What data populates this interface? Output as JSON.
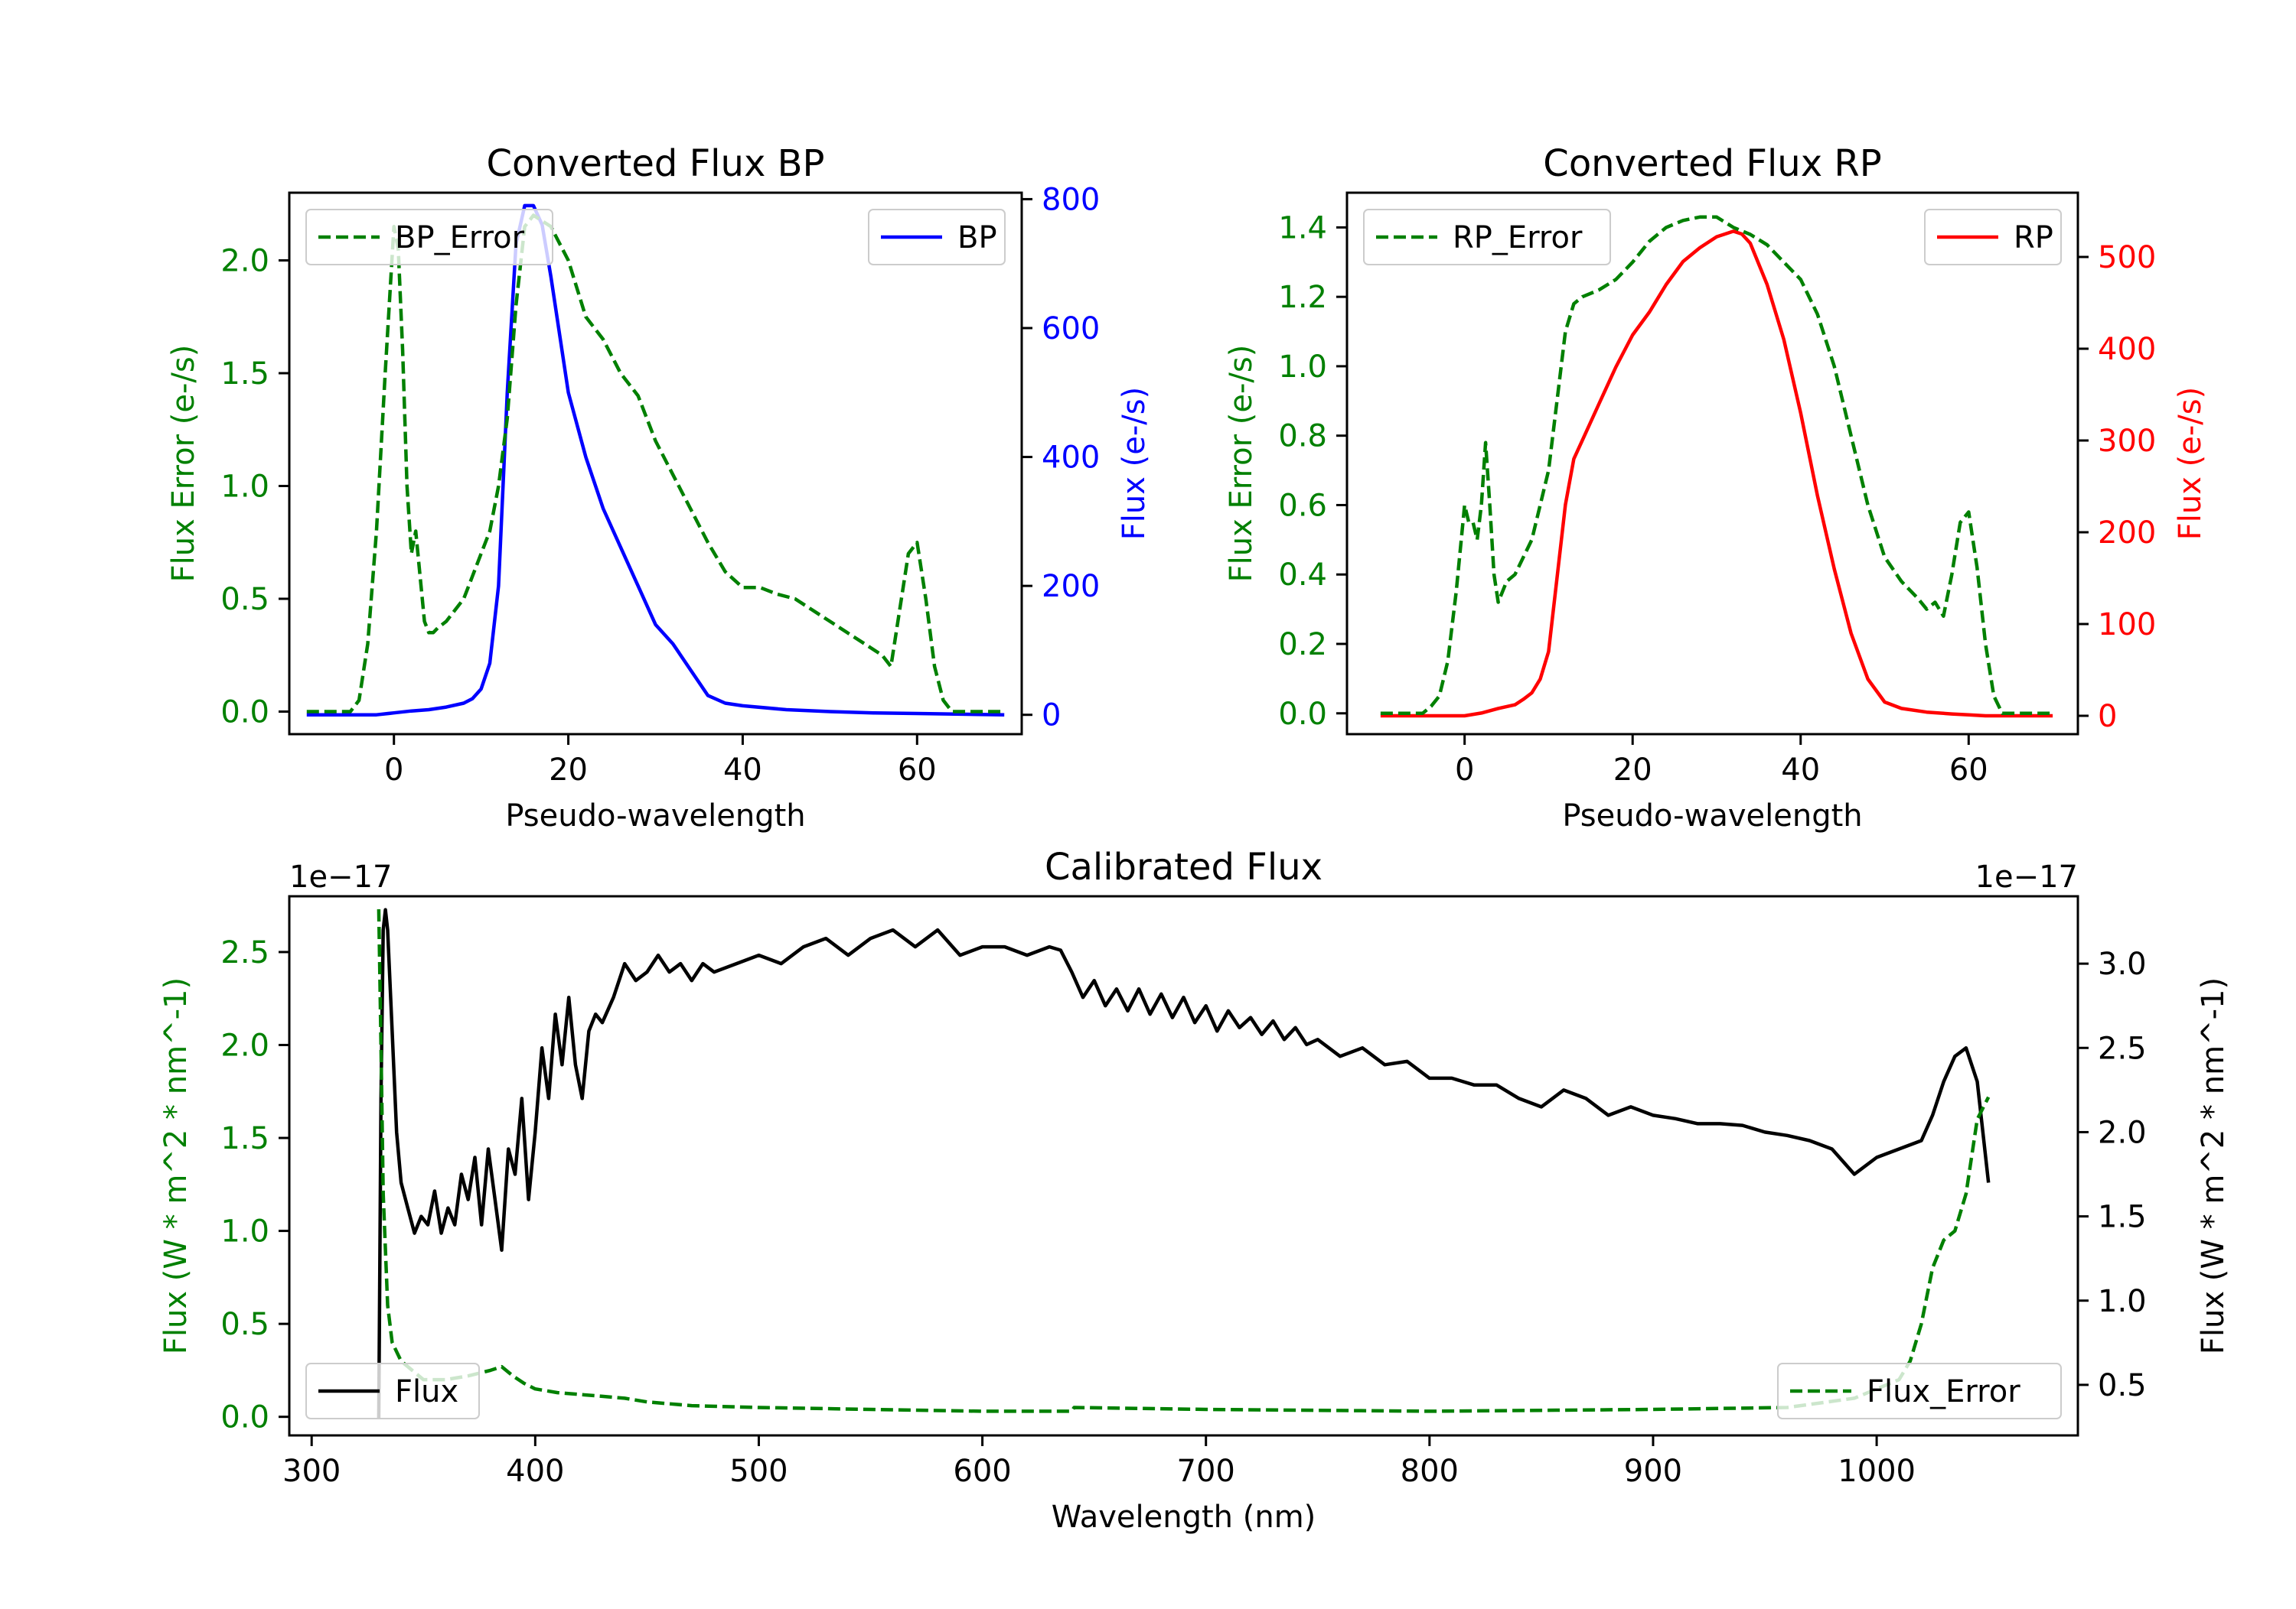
{
  "chart_data": [
    {
      "id": "bp",
      "type": "line",
      "title": "Converted Flux BP",
      "xlabel": "Pseudo-wavelength",
      "ylabel_left": "Flux Error (e-/s)",
      "ylabel_right": "Flux (e-/s)",
      "xlim": [
        -12,
        72
      ],
      "ylim_left": [
        -0.1,
        2.3
      ],
      "ylim_right": [
        -30,
        810
      ],
      "x_ticks": [
        0,
        20,
        40,
        60
      ],
      "y_ticks_left": [
        "0.0",
        "0.5",
        "1.0",
        "1.5",
        "2.0"
      ],
      "y_ticks_right": [
        "0",
        "200",
        "400",
        "600",
        "800"
      ],
      "left_color": "#008000",
      "right_color": "#0000ff",
      "left_legend": "BP_Error",
      "right_legend": "BP",
      "left_legend_position": "upper left",
      "right_legend_position": "upper right",
      "left_series": {
        "name": "BP_Error",
        "axis": "left",
        "style": "dashed",
        "x": [
          -10,
          -5,
          -4,
          -3,
          -2,
          -1,
          0,
          0.5,
          1,
          1.5,
          2,
          2.5,
          3,
          3.5,
          4,
          4.5,
          5,
          6,
          7,
          8,
          9,
          10,
          11,
          12,
          13,
          14,
          15,
          16,
          18,
          20,
          22,
          24,
          26,
          28,
          30,
          32,
          34,
          36,
          38,
          40,
          42,
          44,
          46,
          48,
          50,
          52,
          54,
          56,
          57,
          58,
          59,
          60,
          61,
          62,
          63,
          64,
          66,
          70
        ],
        "y": [
          0,
          0,
          0.05,
          0.3,
          0.8,
          1.5,
          2.15,
          2.05,
          1.6,
          1.0,
          0.7,
          0.8,
          0.6,
          0.4,
          0.35,
          0.35,
          0.37,
          0.4,
          0.45,
          0.5,
          0.6,
          0.7,
          0.8,
          1.0,
          1.3,
          1.8,
          2.15,
          2.2,
          2.15,
          2.0,
          1.75,
          1.65,
          1.5,
          1.4,
          1.2,
          1.05,
          0.9,
          0.75,
          0.62,
          0.55,
          0.55,
          0.52,
          0.5,
          0.45,
          0.4,
          0.35,
          0.3,
          0.25,
          0.2,
          0.45,
          0.7,
          0.75,
          0.5,
          0.2,
          0.05,
          0,
          0,
          0
        ]
      },
      "right_series": {
        "name": "BP",
        "axis": "right",
        "style": "solid",
        "x": [
          -10,
          -2,
          0,
          2,
          4,
          6,
          8,
          9,
          10,
          11,
          12,
          13,
          14,
          15,
          16,
          17,
          18,
          20,
          22,
          24,
          26,
          28,
          30,
          32,
          34,
          36,
          38,
          40,
          45,
          50,
          55,
          60,
          65,
          70
        ],
        "y": [
          0,
          0,
          3,
          6,
          8,
          12,
          18,
          25,
          40,
          80,
          200,
          500,
          730,
          790,
          790,
          760,
          680,
          500,
          400,
          320,
          260,
          200,
          140,
          110,
          70,
          30,
          18,
          14,
          8,
          5,
          3,
          2,
          1,
          0
        ]
      }
    },
    {
      "id": "rp",
      "type": "line",
      "title": "Converted Flux RP",
      "xlabel": "Pseudo-wavelength",
      "ylabel_left": "Flux Error (e-/s)",
      "ylabel_right": "Flux (e-/s)",
      "xlim": [
        -14,
        73
      ],
      "ylim_left": [
        -0.06,
        1.5
      ],
      "ylim_right": [
        -20,
        570
      ],
      "x_ticks": [
        0,
        20,
        40,
        60
      ],
      "y_ticks_left": [
        "0.0",
        "0.2",
        "0.4",
        "0.6",
        "0.8",
        "1.0",
        "1.2",
        "1.4"
      ],
      "y_ticks_right": [
        "0",
        "100",
        "200",
        "300",
        "400",
        "500"
      ],
      "left_color": "#008000",
      "right_color": "#ff0000",
      "left_legend": "RP_Error",
      "right_legend": "RP",
      "left_legend_position": "upper left",
      "right_legend_position": "upper right",
      "left_series": {
        "name": "RP_Error",
        "axis": "left",
        "style": "dashed",
        "x": [
          -10,
          -5,
          -4,
          -3,
          -2,
          -1,
          0,
          0.5,
          1,
          1.5,
          2,
          2.5,
          3,
          3.5,
          4,
          5,
          6,
          8,
          10,
          11,
          12,
          13,
          14,
          16,
          18,
          20,
          22,
          24,
          26,
          28,
          30,
          32,
          34,
          36,
          38,
          40,
          42,
          44,
          46,
          48,
          50,
          52,
          54,
          55,
          56,
          57,
          58,
          59,
          60,
          61,
          62,
          63,
          64,
          66,
          70
        ],
        "y": [
          0,
          0,
          0.02,
          0.05,
          0.15,
          0.35,
          0.6,
          0.55,
          0.55,
          0.5,
          0.6,
          0.78,
          0.6,
          0.4,
          0.32,
          0.38,
          0.4,
          0.5,
          0.7,
          0.9,
          1.1,
          1.18,
          1.2,
          1.22,
          1.25,
          1.3,
          1.36,
          1.4,
          1.42,
          1.43,
          1.43,
          1.4,
          1.38,
          1.35,
          1.3,
          1.25,
          1.15,
          1.0,
          0.8,
          0.6,
          0.45,
          0.38,
          0.33,
          0.3,
          0.32,
          0.28,
          0.4,
          0.55,
          0.58,
          0.42,
          0.2,
          0.05,
          0,
          0,
          0
        ]
      },
      "right_series": {
        "name": "RP",
        "axis": "right",
        "style": "solid",
        "x": [
          -10,
          -2,
          0,
          2,
          4,
          6,
          7,
          8,
          9,
          10,
          11,
          12,
          13,
          14,
          16,
          18,
          20,
          22,
          24,
          26,
          28,
          30,
          31,
          32,
          33,
          34,
          36,
          38,
          40,
          42,
          44,
          46,
          48,
          50,
          52,
          55,
          58,
          60,
          62,
          65,
          70
        ],
        "y": [
          0,
          0,
          0,
          3,
          8,
          12,
          18,
          25,
          40,
          70,
          150,
          230,
          280,
          300,
          340,
          380,
          415,
          440,
          470,
          495,
          510,
          522,
          525,
          528,
          525,
          515,
          470,
          410,
          330,
          240,
          160,
          90,
          40,
          15,
          8,
          4,
          2,
          1,
          0,
          0,
          0
        ]
      }
    },
    {
      "id": "calibrated",
      "type": "line",
      "title": "Calibrated Flux",
      "xlabel": "Wavelength (nm)",
      "ylabel_left": "Flux (W * m^2 * nm^-1)",
      "ylabel_right": "Flux (W * m^2 * nm^-1)",
      "offset_text_left": "1e−17",
      "offset_text_right": "1e−17",
      "y_multiplier": 1e-17,
      "xlim": [
        290,
        1090
      ],
      "ylim_left": [
        -0.1,
        2.8
      ],
      "ylim_right": [
        0.2,
        3.4
      ],
      "x_ticks": [
        300,
        400,
        500,
        600,
        700,
        800,
        900,
        1000
      ],
      "y_ticks_left": [
        "0.0",
        "0.5",
        "1.0",
        "1.5",
        "2.0",
        "2.5"
      ],
      "y_ticks_right": [
        "0.5",
        "1.0",
        "1.5",
        "2.0",
        "2.5",
        "3.0"
      ],
      "left_color": "#008000",
      "right_color": "#000000",
      "left_legend": "Flux_Error",
      "right_legend": "Flux",
      "left_legend_position": "lower right",
      "right_legend_position": "lower left",
      "left_series": {
        "name": "Flux_Error",
        "axis": "left",
        "style": "dashed",
        "x": [
          330,
          331,
          332,
          334,
          336,
          340,
          350,
          360,
          370,
          380,
          385,
          390,
          395,
          400,
          410,
          420,
          430,
          440,
          450,
          470,
          500,
          550,
          600,
          640,
          641,
          700,
          800,
          900,
          960,
          990,
          1000,
          1010,
          1015,
          1020,
          1025,
          1030,
          1035,
          1040,
          1045,
          1050
        ],
        "y": [
          2.73,
          2.0,
          1.2,
          0.6,
          0.4,
          0.3,
          0.2,
          0.2,
          0.22,
          0.25,
          0.27,
          0.22,
          0.18,
          0.15,
          0.13,
          0.12,
          0.11,
          0.1,
          0.08,
          0.06,
          0.05,
          0.04,
          0.03,
          0.03,
          0.05,
          0.04,
          0.03,
          0.04,
          0.05,
          0.1,
          0.15,
          0.2,
          0.3,
          0.5,
          0.8,
          0.95,
          1.0,
          1.2,
          1.6,
          1.72
        ]
      },
      "right_series": {
        "name": "Flux",
        "axis": "right",
        "style": "solid",
        "x": [
          330,
          331,
          332,
          333,
          334,
          336,
          338,
          340,
          343,
          346,
          349,
          352,
          355,
          358,
          361,
          364,
          367,
          370,
          373,
          376,
          379,
          382,
          385,
          388,
          391,
          394,
          397,
          400,
          403,
          406,
          409,
          412,
          415,
          418,
          421,
          424,
          427,
          430,
          435,
          440,
          445,
          450,
          455,
          460,
          465,
          470,
          475,
          480,
          490,
          500,
          510,
          520,
          530,
          540,
          550,
          560,
          570,
          580,
          590,
          600,
          610,
          620,
          630,
          635,
          640,
          645,
          650,
          655,
          660,
          665,
          670,
          675,
          680,
          685,
          690,
          695,
          700,
          705,
          710,
          715,
          720,
          725,
          730,
          735,
          740,
          745,
          750,
          760,
          770,
          780,
          790,
          800,
          810,
          820,
          830,
          840,
          850,
          860,
          870,
          880,
          890,
          900,
          910,
          920,
          930,
          940,
          950,
          960,
          970,
          980,
          990,
          1000,
          1010,
          1020,
          1025,
          1030,
          1035,
          1040,
          1045,
          1050
        ],
        "y": [
          0.3,
          2.2,
          3.2,
          3.32,
          3.2,
          2.6,
          2.0,
          1.7,
          1.55,
          1.4,
          1.5,
          1.45,
          1.65,
          1.4,
          1.55,
          1.45,
          1.75,
          1.6,
          1.85,
          1.45,
          1.9,
          1.6,
          1.3,
          1.9,
          1.75,
          2.2,
          1.6,
          2.0,
          2.5,
          2.2,
          2.7,
          2.4,
          2.8,
          2.4,
          2.2,
          2.6,
          2.7,
          2.65,
          2.8,
          3.0,
          2.9,
          2.95,
          3.05,
          2.95,
          3.0,
          2.9,
          3.0,
          2.95,
          3.0,
          3.05,
          3.0,
          3.1,
          3.15,
          3.05,
          3.15,
          3.2,
          3.1,
          3.2,
          3.05,
          3.1,
          3.1,
          3.05,
          3.1,
          3.08,
          2.95,
          2.8,
          2.9,
          2.75,
          2.85,
          2.72,
          2.85,
          2.7,
          2.82,
          2.68,
          2.8,
          2.65,
          2.75,
          2.6,
          2.72,
          2.62,
          2.68,
          2.58,
          2.66,
          2.55,
          2.62,
          2.52,
          2.55,
          2.45,
          2.5,
          2.4,
          2.42,
          2.32,
          2.32,
          2.28,
          2.28,
          2.2,
          2.15,
          2.25,
          2.2,
          2.1,
          2.15,
          2.1,
          2.08,
          2.05,
          2.05,
          2.04,
          2.0,
          1.98,
          1.95,
          1.9,
          1.75,
          1.85,
          1.9,
          1.95,
          2.1,
          2.3,
          2.45,
          2.5,
          2.3,
          1.7
        ]
      }
    }
  ]
}
